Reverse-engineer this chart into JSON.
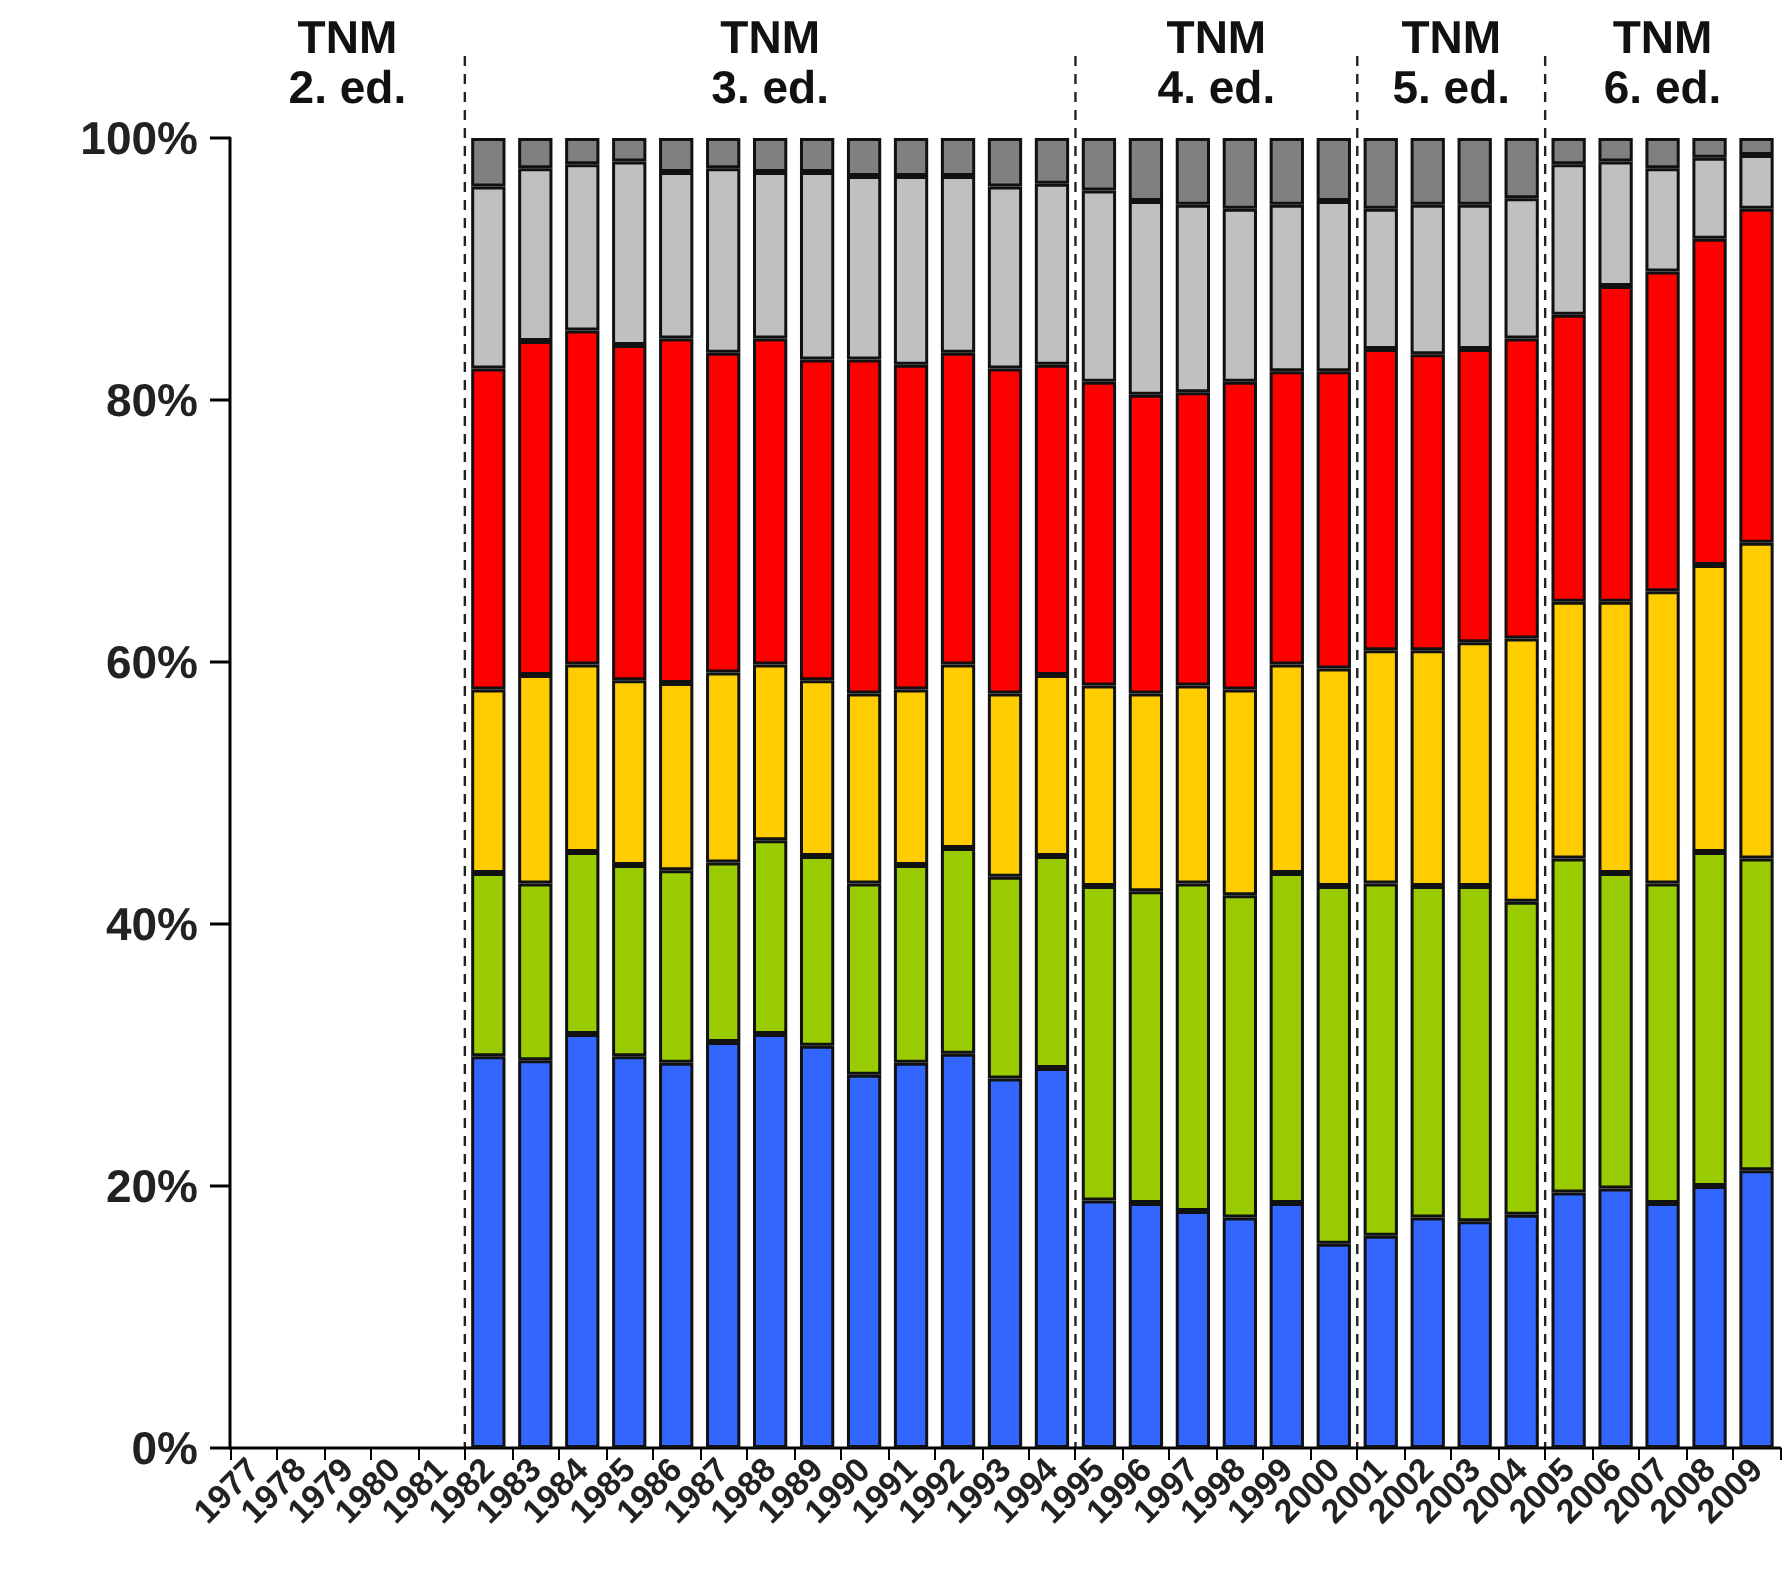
{
  "chart_data": {
    "type": "bar",
    "stacked": true,
    "categories": [
      "1977",
      "1978",
      "1979",
      "1980",
      "1981",
      "1982",
      "1983",
      "1984",
      "1985",
      "1986",
      "1987",
      "1988",
      "1989",
      "1990",
      "1991",
      "1992",
      "1993",
      "1994",
      "1995",
      "1996",
      "1997",
      "1998",
      "1999",
      "2000",
      "2001",
      "2002",
      "2003",
      "2004",
      "2005",
      "2006",
      "2007",
      "2008",
      "2009"
    ],
    "series": [
      {
        "color": "#3366ff",
        "values": [
          null,
          null,
          null,
          null,
          null,
          29.9,
          29.6,
          31.6,
          29.9,
          29.4,
          31.0,
          31.6,
          30.7,
          28.5,
          29.4,
          30.1,
          28.2,
          29.0,
          18.9,
          18.7,
          18.1,
          17.6,
          18.7,
          15.6,
          16.2,
          17.6,
          17.3,
          17.8,
          19.5,
          19.8,
          18.7,
          20.0,
          21.2
        ]
      },
      {
        "color": "#99cc00",
        "values": [
          null,
          null,
          null,
          null,
          null,
          14.0,
          13.5,
          13.9,
          14.6,
          14.7,
          13.7,
          14.8,
          14.5,
          14.6,
          15.1,
          15.7,
          15.4,
          16.2,
          24.0,
          23.8,
          25.0,
          24.6,
          25.2,
          27.3,
          26.9,
          25.3,
          25.6,
          23.9,
          25.5,
          24.1,
          24.4,
          25.5,
          23.8
        ]
      },
      {
        "color": "#ffcc00",
        "values": [
          null,
          null,
          null,
          null,
          null,
          14.0,
          15.9,
          14.3,
          14.1,
          14.3,
          14.5,
          13.4,
          13.4,
          14.5,
          13.4,
          14.0,
          14.0,
          13.8,
          15.3,
          15.1,
          15.1,
          15.7,
          15.9,
          16.6,
          17.8,
          18.0,
          18.6,
          20.1,
          19.6,
          20.7,
          22.3,
          21.9,
          24.1
        ]
      },
      {
        "color": "#ff0000",
        "values": [
          null,
          null,
          null,
          null,
          null,
          24.5,
          25.5,
          25.5,
          25.6,
          26.3,
          24.4,
          24.9,
          24.5,
          25.5,
          24.8,
          23.8,
          24.8,
          23.7,
          23.2,
          22.8,
          22.4,
          23.5,
          22.4,
          22.7,
          23.0,
          22.6,
          22.4,
          22.9,
          21.9,
          24.1,
          24.4,
          24.9,
          25.5
        ]
      },
      {
        "color": "#c0c0c0",
        "values": [
          null,
          null,
          null,
          null,
          null,
          13.9,
          13.2,
          12.7,
          14.0,
          12.7,
          14.1,
          12.7,
          14.3,
          14.0,
          14.4,
          13.5,
          13.9,
          13.8,
          14.6,
          14.8,
          14.3,
          13.2,
          12.7,
          13.0,
          10.7,
          11.4,
          11.0,
          10.7,
          11.5,
          9.5,
          7.9,
          6.2,
          4.1
        ]
      },
      {
        "color": "#808080",
        "values": [
          null,
          null,
          null,
          null,
          null,
          3.7,
          2.3,
          2.0,
          1.8,
          2.6,
          2.3,
          2.6,
          2.6,
          2.9,
          2.9,
          2.9,
          3.7,
          3.5,
          4.0,
          4.8,
          5.1,
          5.4,
          5.1,
          4.8,
          5.4,
          5.1,
          5.1,
          4.6,
          2.0,
          1.8,
          2.3,
          1.5,
          1.3
        ]
      }
    ],
    "ylim": [
      0,
      100
    ],
    "yticks": [
      {
        "value": 0,
        "label": "0%"
      },
      {
        "value": 20,
        "label": "20%"
      },
      {
        "value": 40,
        "label": "40%"
      },
      {
        "value": 60,
        "label": "60%"
      },
      {
        "value": 80,
        "label": "80%"
      },
      {
        "value": 100,
        "label": "100%"
      }
    ],
    "grid": false,
    "ref_lines": [
      {
        "axis": "x",
        "value": "1982",
        "line_style": "dashed"
      },
      {
        "axis": "x",
        "value": "1995",
        "line_style": "dashed"
      },
      {
        "axis": "x",
        "value": "2001",
        "line_style": "dashed"
      },
      {
        "axis": "x",
        "value": "2005",
        "line_style": "dashed"
      }
    ],
    "annotations": [
      "TNM\n2. ed.",
      "TNM\n3. ed.",
      "TNM\n4. ed.",
      "TNM\n5. ed.",
      "TNM\n6. ed."
    ]
  }
}
